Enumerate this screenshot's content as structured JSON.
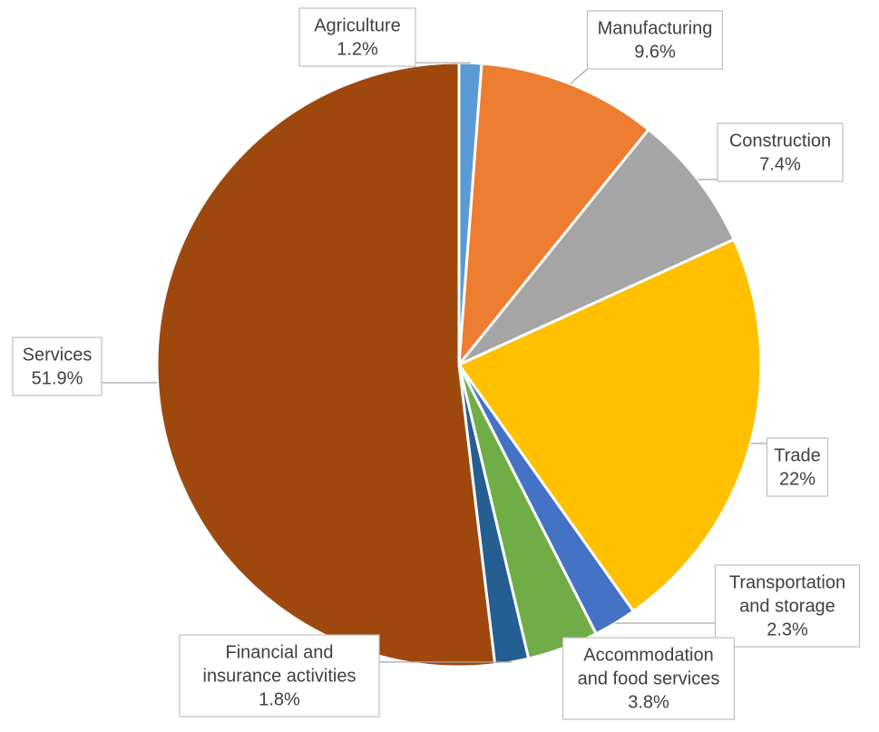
{
  "chart_data": {
    "type": "pie",
    "title": "",
    "legend": "none",
    "start_angle_deg": 0,
    "direction": "clockwise",
    "slices": [
      {
        "label": [
          "Agriculture"
        ],
        "value_label": "1.2%",
        "value": 1.2,
        "color": "#5b9bd5"
      },
      {
        "label": [
          "Manufacturing"
        ],
        "value_label": "9.6%",
        "value": 9.6,
        "color": "#ed7d31"
      },
      {
        "label": [
          "Construction"
        ],
        "value_label": "7.4%",
        "value": 7.4,
        "color": "#a5a5a5"
      },
      {
        "label": [
          "Trade"
        ],
        "value_label": "22%",
        "value": 22.0,
        "color": "#ffc000"
      },
      {
        "label": [
          "Transportation",
          "and storage"
        ],
        "value_label": "2.3%",
        "value": 2.3,
        "color": "#4472c4"
      },
      {
        "label": [
          "Accommodation",
          "and food services"
        ],
        "value_label": "3.8%",
        "value": 3.8,
        "color": "#70ad47"
      },
      {
        "label": [
          "Financial and",
          "insurance activities"
        ],
        "value_label": "1.8%",
        "value": 1.8,
        "color": "#255e91"
      },
      {
        "label": [
          "Services"
        ],
        "value_label": "51.9%",
        "value": 51.9,
        "color": "#9e480e"
      }
    ]
  }
}
